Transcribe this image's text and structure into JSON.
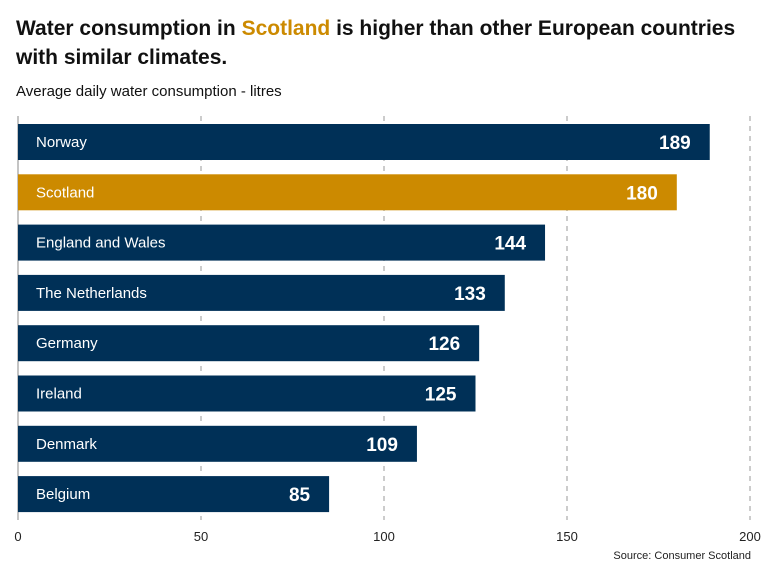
{
  "title": {
    "before": "Water consumption in ",
    "highlight": "Scotland",
    "after": " is higher than other European countries with similar climates."
  },
  "subtitle": "Average daily water consumption - litres",
  "source": "Source: Consumer Scotland",
  "colors": {
    "default": "#003057",
    "highlight": "#cc8a00",
    "grid": "#999999"
  },
  "chart_data": {
    "type": "bar",
    "orientation": "horizontal",
    "categories": [
      "Norway",
      "Scotland",
      "England and Wales",
      "The Netherlands",
      "Germany",
      "Ireland",
      "Denmark",
      "Belgium"
    ],
    "values": [
      189,
      180,
      144,
      133,
      126,
      125,
      109,
      85
    ],
    "highlighted": [
      "Scotland"
    ],
    "xlim": [
      0,
      200
    ],
    "xticks": [
      0,
      50,
      100,
      150,
      200
    ],
    "grid": "vertical dashed",
    "ylabel": "Average daily water consumption - litres"
  }
}
